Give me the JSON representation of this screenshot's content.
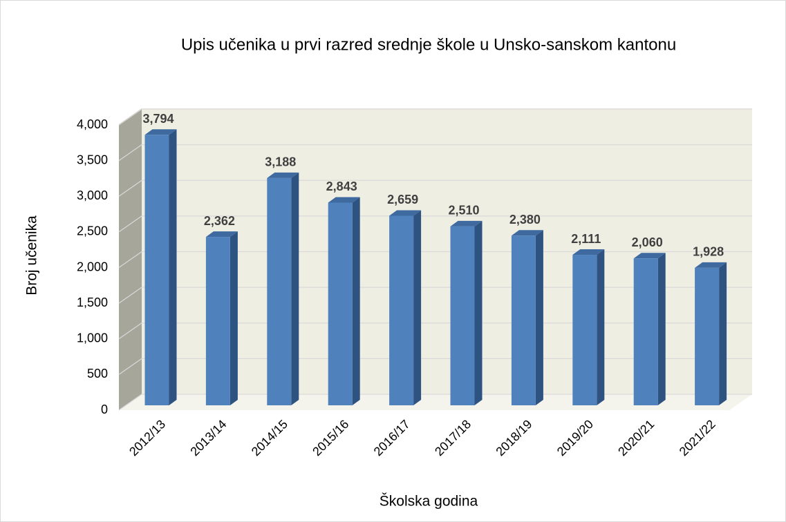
{
  "chart_data": {
    "type": "bar3d",
    "title": "Upis učenika u prvi razred srednje škole u Unsko-sanskom kantonu",
    "xlabel": "Školska godina",
    "ylabel": "Broj učenika",
    "categories": [
      "2012/13",
      "2013/14",
      "2014/15",
      "2015/16",
      "2016/17",
      "2017/18",
      "2018/19",
      "2019/20",
      "2020/21",
      "2021/22"
    ],
    "values": [
      3794,
      2362,
      3188,
      2843,
      2659,
      2510,
      2380,
      2111,
      2060,
      1928
    ],
    "value_labels": [
      "3,794",
      "2,362",
      "3,188",
      "2,843",
      "2,659",
      "2,510",
      "2,380",
      "2,111",
      "2,060",
      "1,928"
    ],
    "color": "#4f81bd",
    "ylim": [
      0,
      4000
    ],
    "yticks": [
      0,
      500,
      {
        "value": 1000,
        "label": "1,000"
      },
      {
        "value": 1500,
        "label": "1,500"
      },
      {
        "value": 2000,
        "label": "2,000"
      },
      {
        "value": 2500,
        "label": "2,500"
      },
      {
        "value": 3000,
        "label": "3,000"
      },
      {
        "value": 3500,
        "label": "3,500"
      },
      {
        "value": 4000,
        "label": "4,000"
      }
    ],
    "grid": true
  }
}
